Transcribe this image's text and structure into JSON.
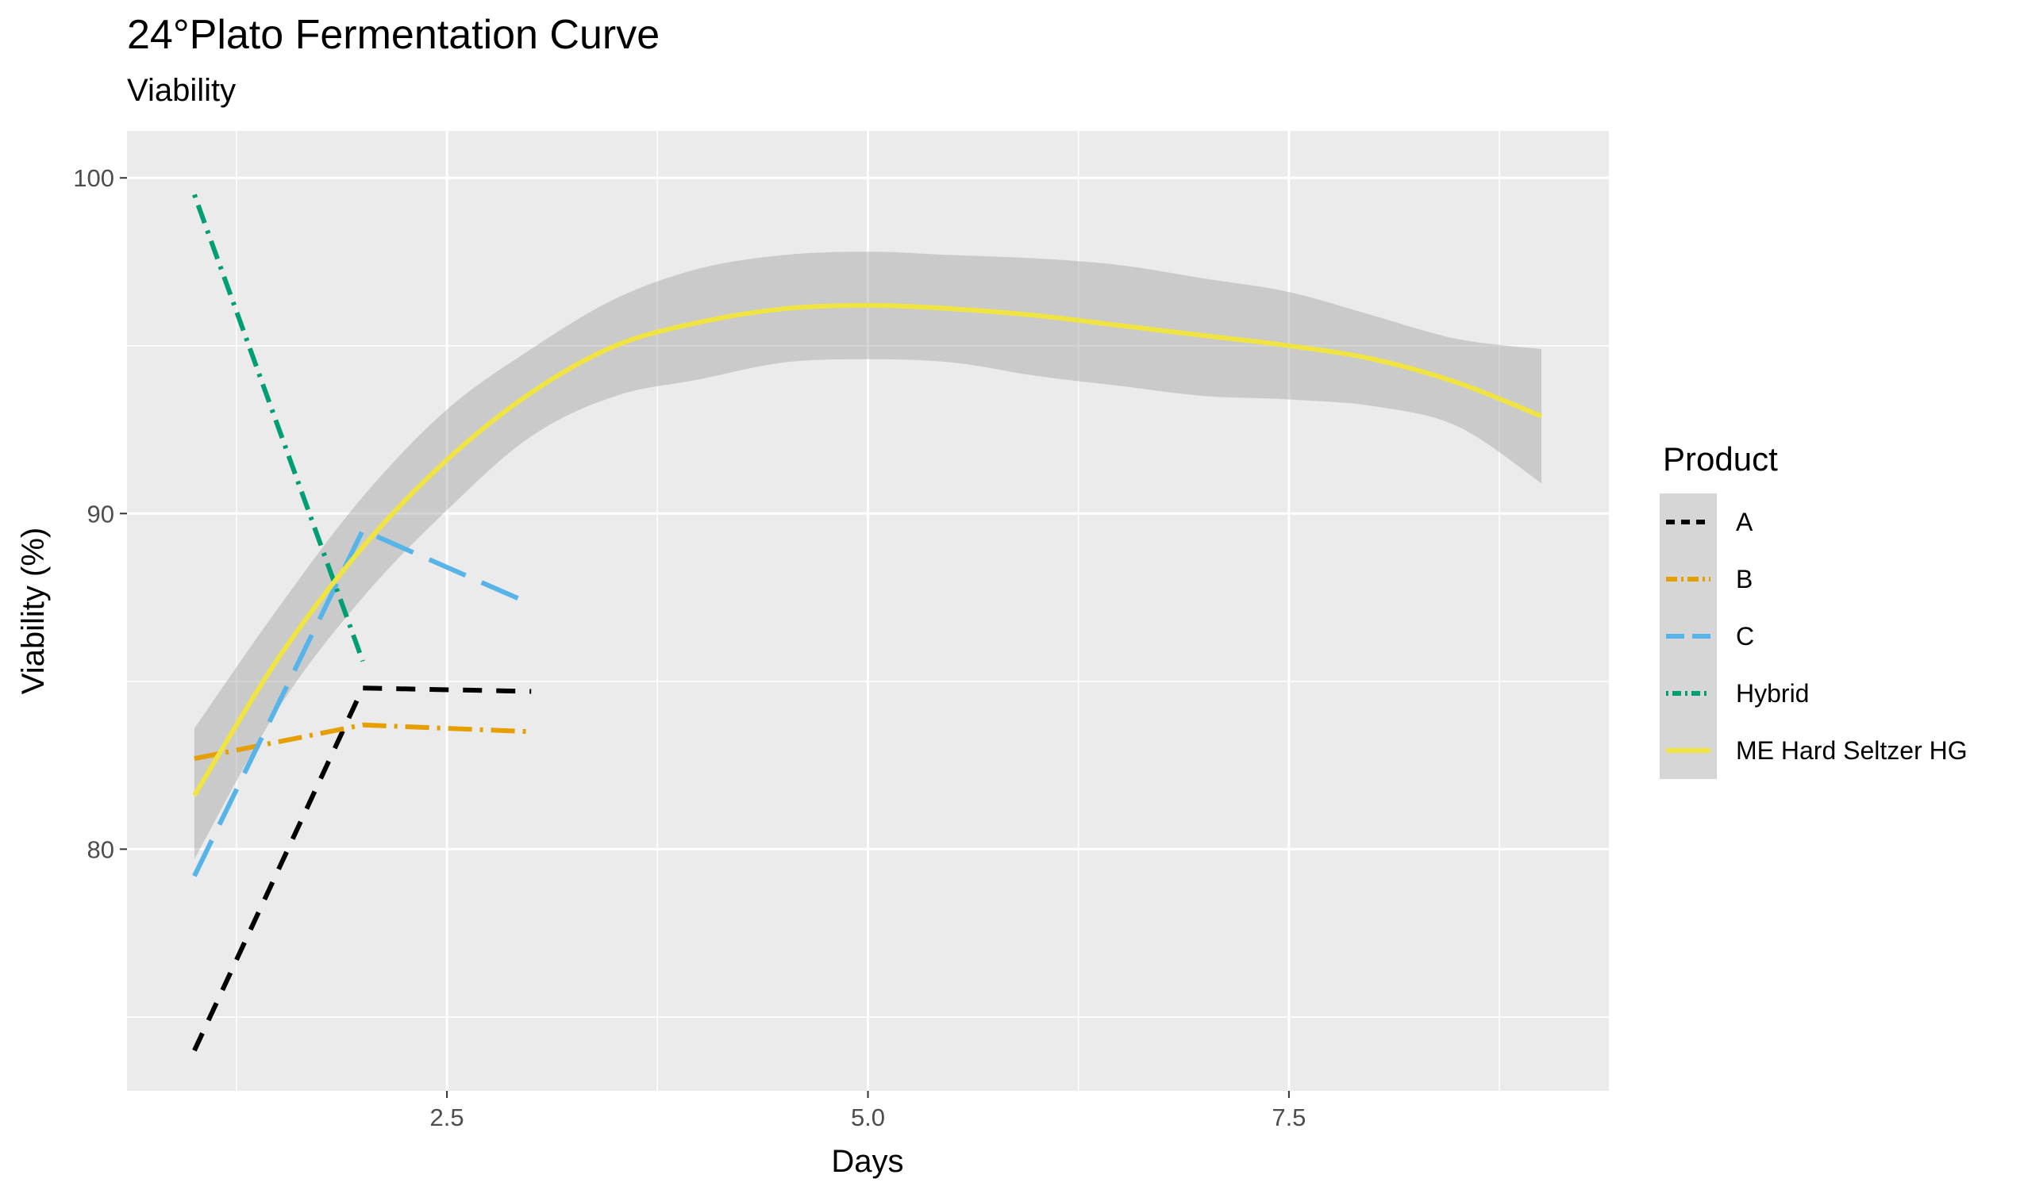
{
  "chart_data": {
    "type": "line",
    "title": "24°Plato Fermentation Curve",
    "subtitle": "Viability",
    "xlabel": "Days",
    "ylabel": "Viability (%)",
    "xlim": [
      0.6,
      9.4
    ],
    "ylim": [
      72.8,
      101.4
    ],
    "x_ticks": [
      2.5,
      5.0,
      7.5
    ],
    "x_tick_labels": [
      "2.5",
      "5.0",
      "7.5"
    ],
    "y_ticks": [
      80,
      90,
      100
    ],
    "y_tick_labels": [
      "80",
      "90",
      "100"
    ],
    "grid": true,
    "legend": {
      "title": "Product",
      "position": "right"
    },
    "series": [
      {
        "name": "A",
        "color": "#000000",
        "dash": "24 18",
        "x": [
          1,
          2,
          3
        ],
        "y": [
          74.0,
          84.8,
          84.7
        ]
      },
      {
        "name": "B",
        "color": "#E69F00",
        "dash": "30 10 4 10",
        "x": [
          1,
          2,
          3
        ],
        "y": [
          82.7,
          83.7,
          83.5
        ]
      },
      {
        "name": "C",
        "color": "#56B4E9",
        "dash": "50 22",
        "x": [
          1,
          2,
          3
        ],
        "y": [
          79.2,
          89.5,
          87.3
        ]
      },
      {
        "name": "Hybrid",
        "color": "#009E73",
        "dash": "4 10 24 10",
        "x": [
          1,
          2
        ],
        "y": [
          99.5,
          85.6
        ]
      },
      {
        "name": "ME Hard Seltzer HG",
        "color": "#F0E442",
        "dash": "",
        "smooth": true,
        "x": [
          1,
          1.5,
          2,
          2.5,
          3,
          3.5,
          4,
          4.5,
          5,
          5.5,
          6,
          6.5,
          7,
          7.5,
          8,
          8.5,
          9
        ],
        "y": [
          81.6,
          85.7,
          89.0,
          91.6,
          93.6,
          95.0,
          95.7,
          96.1,
          96.2,
          96.1,
          95.9,
          95.6,
          95.3,
          95.0,
          94.6,
          93.9,
          92.9
        ],
        "ci_lower": [
          79.7,
          84.2,
          87.5,
          90.1,
          92.3,
          93.5,
          94.0,
          94.5,
          94.6,
          94.5,
          94.1,
          93.8,
          93.5,
          93.4,
          93.2,
          92.6,
          90.9
        ],
        "ci_upper": [
          83.6,
          87.2,
          90.5,
          93.1,
          94.9,
          96.4,
          97.3,
          97.7,
          97.8,
          97.7,
          97.6,
          97.4,
          97.0,
          96.6,
          95.9,
          95.2,
          94.9
        ]
      }
    ]
  }
}
